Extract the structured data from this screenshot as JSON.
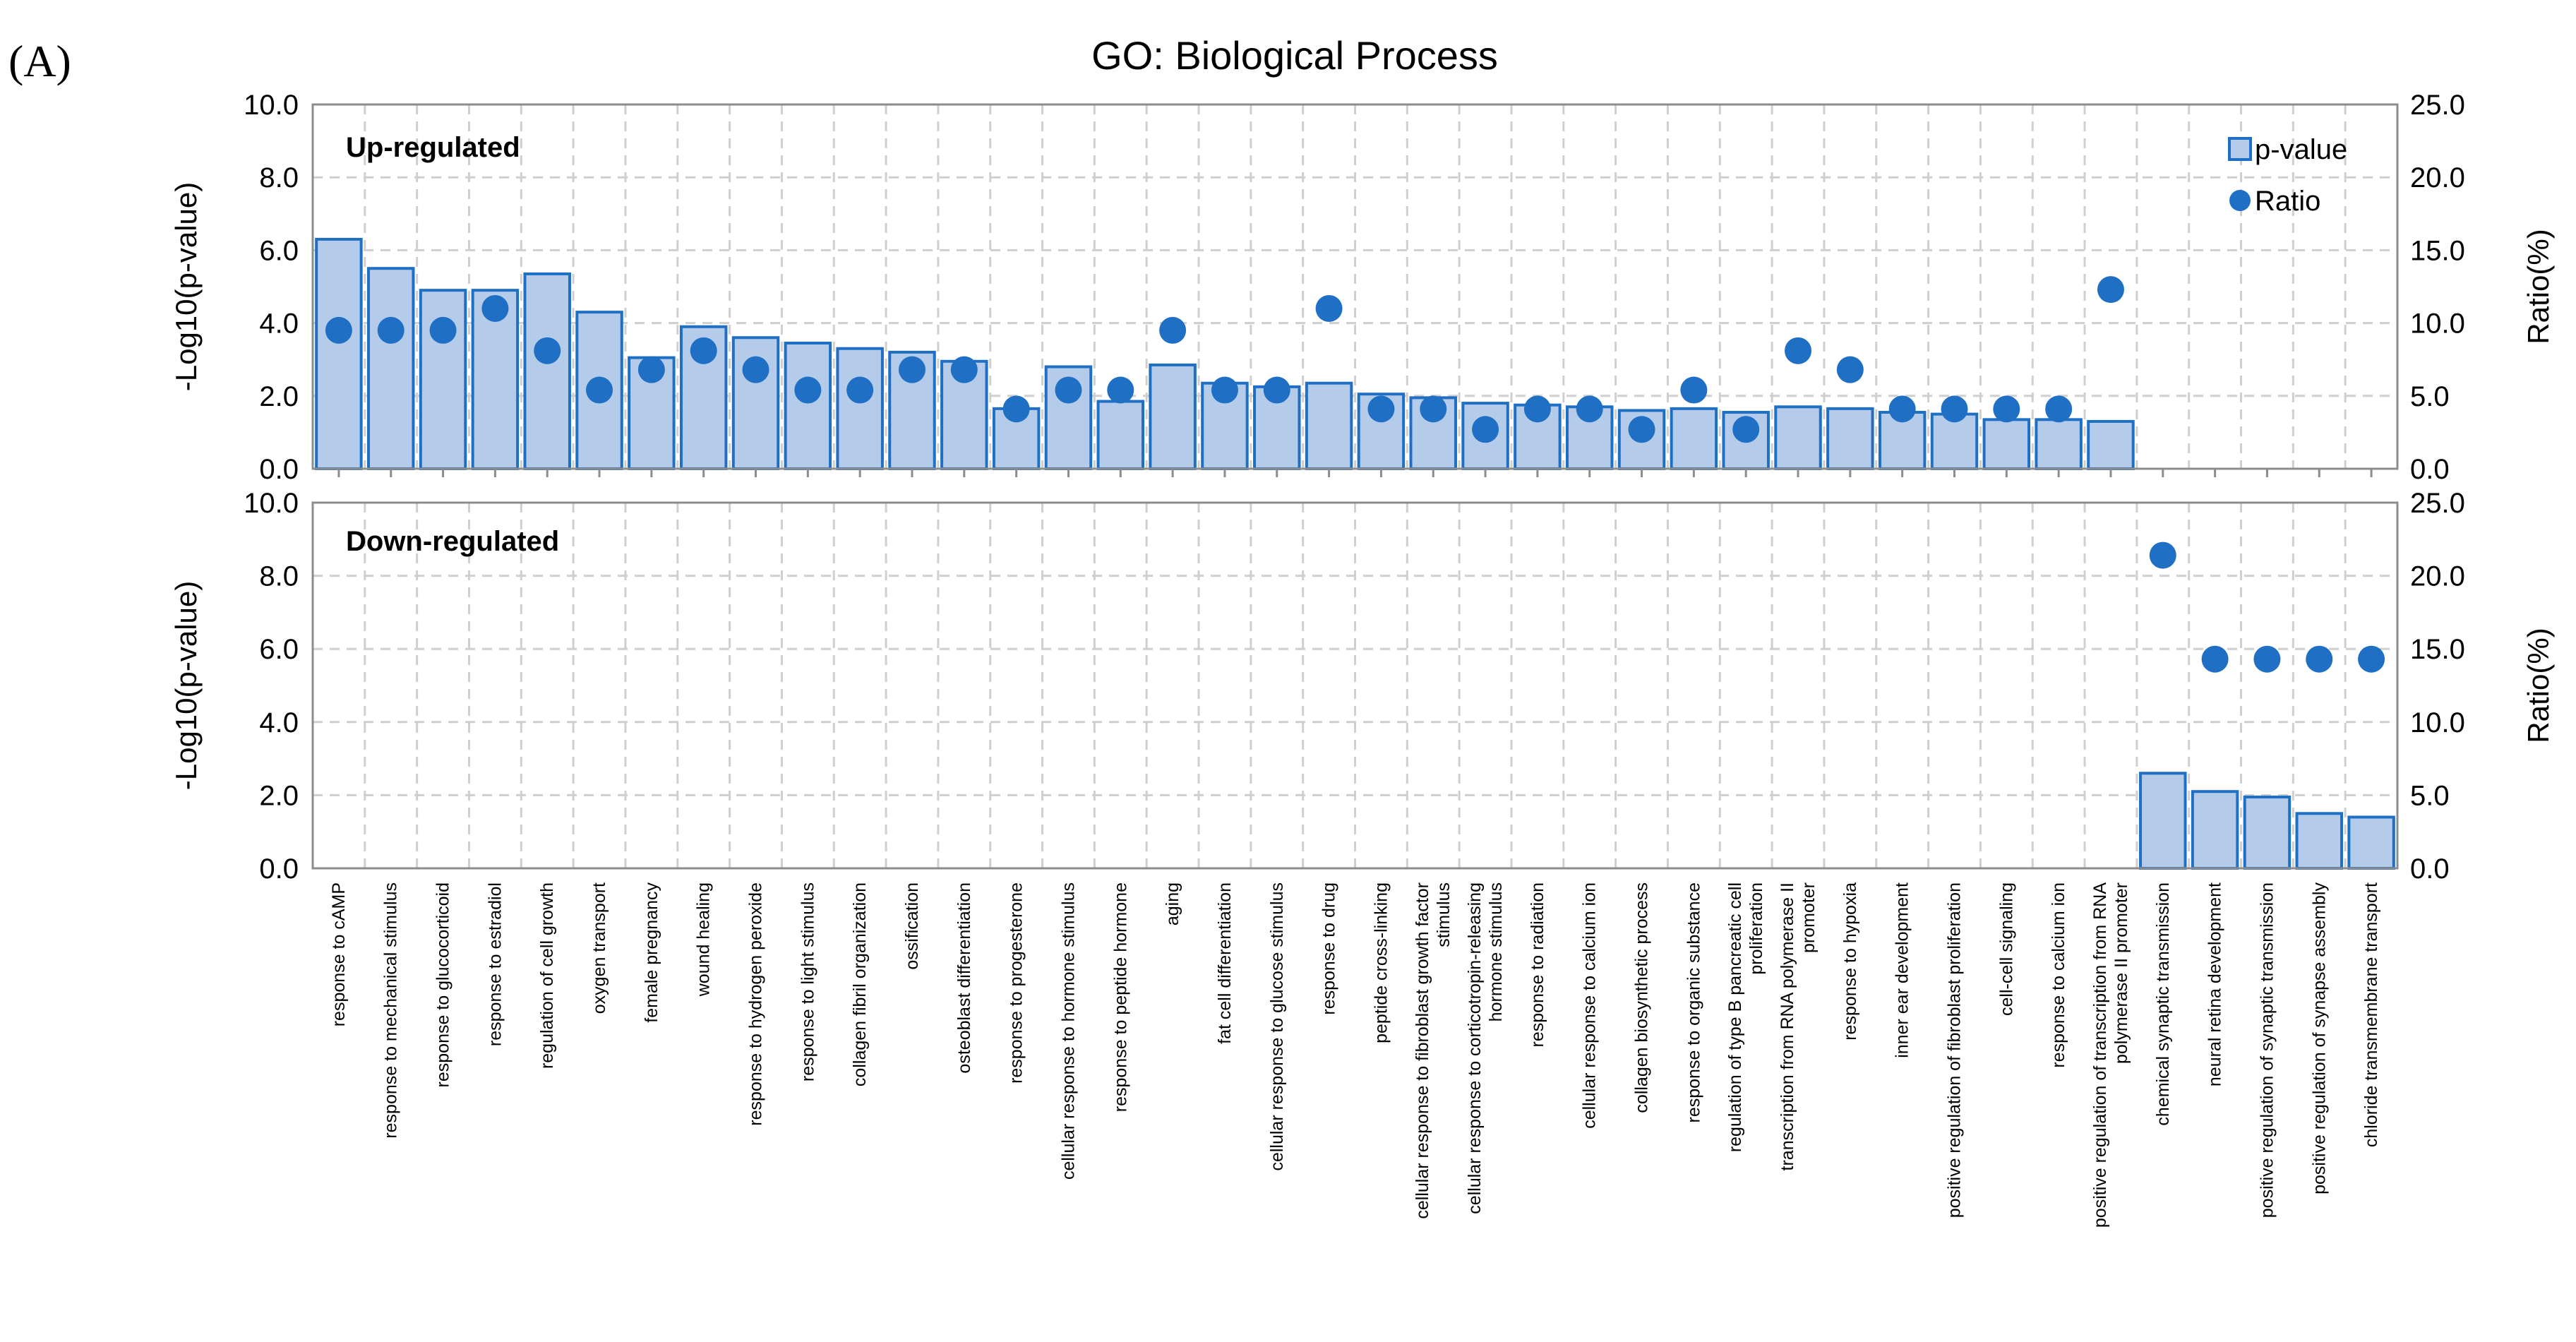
{
  "panel_label": "(A)",
  "chart_data": {
    "type": "bar",
    "title": "GO: Biological Process",
    "legend": {
      "bar": "p-value",
      "dot": "Ratio",
      "position": "top-right"
    },
    "left_axis": {
      "label": "-Log10(p-value)",
      "ylim": [
        0,
        10
      ],
      "ticks": [
        "0.0",
        "2.0",
        "4.0",
        "6.0",
        "8.0",
        "10.0"
      ]
    },
    "right_axis": {
      "label": "Ratio(%)",
      "ylim": [
        0,
        25
      ],
      "ticks": [
        "0.0",
        "5.0",
        "10.0",
        "15.0",
        "20.0",
        "25.0"
      ]
    },
    "panels": [
      {
        "name": "up",
        "title": "Up-regulated"
      },
      {
        "name": "down",
        "title": "Down-regulated"
      }
    ],
    "categories": [
      [
        "response to cAMP"
      ],
      [
        "response to mechanical stimulus"
      ],
      [
        "response to glucocorticoid"
      ],
      [
        "response to estradiol"
      ],
      [
        "regulation of cell growth"
      ],
      [
        "oxygen transport"
      ],
      [
        "female pregnancy"
      ],
      [
        "wound healing"
      ],
      [
        "response to hydrogen peroxide"
      ],
      [
        "response to light stimulus"
      ],
      [
        "collagen fibril organization"
      ],
      [
        "ossification"
      ],
      [
        "osteoblast differentiation"
      ],
      [
        "response to progesterone"
      ],
      [
        "cellular response to hormone stimulus"
      ],
      [
        "response to peptide hormone"
      ],
      [
        "aging"
      ],
      [
        "fat cell differentiation"
      ],
      [
        "cellular response to glucose stimulus"
      ],
      [
        "response to drug"
      ],
      [
        "peptide cross-linking"
      ],
      [
        "cellular response to fibroblast growth factor",
        "stimulus"
      ],
      [
        "cellular response to corticotropin-releasing",
        "hormone stimulus"
      ],
      [
        "response to radiation"
      ],
      [
        "cellular response to calcium ion"
      ],
      [
        "collagen biosynthetic process"
      ],
      [
        "response to organic substance"
      ],
      [
        "regulation of type B pancreatic cell",
        "proliferation"
      ],
      [
        "transcription from RNA polymerase II",
        "promoter"
      ],
      [
        "response to hypoxia"
      ],
      [
        "inner ear development"
      ],
      [
        "positive regulation of fibroblast proliferation"
      ],
      [
        "cell-cell signaling"
      ],
      [
        "response to calcium ion"
      ],
      [
        "positive regulation of transcription from RNA",
        "polymerase II promoter"
      ],
      [
        "chemical synaptic transmission"
      ],
      [
        "neural retina development"
      ],
      [
        "positive regulation of synaptic transmission"
      ],
      [
        "positive regulation of synapse assembly"
      ],
      [
        "chloride transmembrane transport"
      ]
    ],
    "series": [
      {
        "name": "Up-regulated -Log10(p-value)",
        "values": [
          6.3,
          5.5,
          4.9,
          4.9,
          5.35,
          4.3,
          3.05,
          3.9,
          3.6,
          3.45,
          3.3,
          3.2,
          2.95,
          1.65,
          2.8,
          1.85,
          2.85,
          2.35,
          2.25,
          2.35,
          2.05,
          1.95,
          1.8,
          1.75,
          1.7,
          1.6,
          1.65,
          1.55,
          1.7,
          1.65,
          1.55,
          1.5,
          1.35,
          1.35,
          1.3,
          null,
          null,
          null,
          null,
          null
        ]
      },
      {
        "name": "Up-regulated Ratio(%)",
        "values": [
          9.5,
          9.5,
          9.5,
          11,
          8.1,
          5.4,
          6.8,
          8.1,
          6.8,
          5.4,
          5.4,
          6.8,
          6.8,
          4.1,
          5.4,
          5.4,
          9.5,
          5.4,
          5.4,
          11,
          4.1,
          4.1,
          2.7,
          4.1,
          4.1,
          2.7,
          5.4,
          2.7,
          8.1,
          6.8,
          4.1,
          4.1,
          4.1,
          4.1,
          12.3,
          null,
          null,
          null,
          null,
          null
        ]
      },
      {
        "name": "Down-regulated -Log10(p-value)",
        "values": [
          null,
          null,
          null,
          null,
          null,
          null,
          null,
          null,
          null,
          null,
          null,
          null,
          null,
          null,
          null,
          null,
          null,
          null,
          null,
          null,
          null,
          null,
          null,
          null,
          null,
          null,
          null,
          null,
          null,
          null,
          null,
          null,
          null,
          null,
          null,
          2.6,
          2.1,
          1.95,
          1.5,
          1.4
        ]
      },
      {
        "name": "Down-regulated Ratio(%)",
        "values": [
          null,
          null,
          null,
          null,
          null,
          null,
          null,
          null,
          null,
          null,
          null,
          null,
          null,
          null,
          null,
          null,
          null,
          null,
          null,
          null,
          null,
          null,
          null,
          null,
          null,
          null,
          null,
          null,
          null,
          null,
          null,
          null,
          null,
          null,
          null,
          21.4,
          14.3,
          14.3,
          14.3,
          14.3
        ]
      }
    ]
  }
}
